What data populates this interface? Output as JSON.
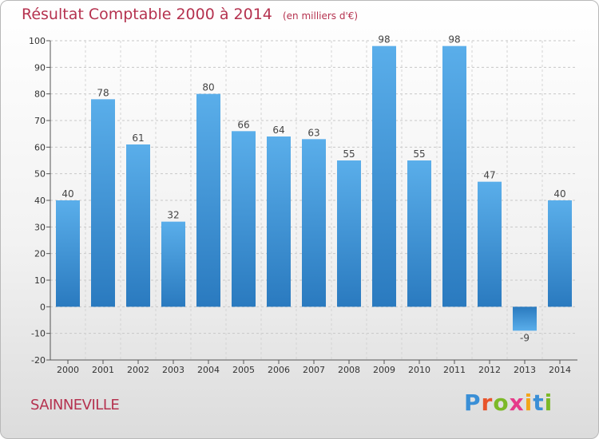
{
  "header": {
    "title": "Résultat Comptable 2000 à 2014",
    "unit": "(en milliers d'€)"
  },
  "footer": {
    "commune": "SAINNEVILLE",
    "logo_letters": [
      "P",
      "r",
      "o",
      "x",
      "i",
      "t",
      "i"
    ],
    "logo_colors": [
      "#3a8fd6",
      "#e8542b",
      "#7cb928",
      "#e63b8a",
      "#f2a51a",
      "#3a8fd6",
      "#7cb928"
    ]
  },
  "colors": {
    "title": "#b5324f",
    "bar_light": "#5aaeea",
    "bar_dark": "#2a7abf"
  },
  "chart_data": {
    "type": "bar",
    "title": "Résultat Comptable 2000 à 2014",
    "xlabel": "",
    "ylabel": "",
    "categories": [
      "2000",
      "2001",
      "2002",
      "2003",
      "2004",
      "2005",
      "2006",
      "2007",
      "2008",
      "2009",
      "2010",
      "2011",
      "2012",
      "2013",
      "2014"
    ],
    "values": [
      40,
      78,
      61,
      32,
      80,
      66,
      64,
      63,
      55,
      98,
      55,
      98,
      47,
      -9,
      40
    ],
    "data_labels": [
      "40",
      "78",
      "61",
      "32",
      "80",
      "66",
      "64",
      "63",
      "55",
      "98",
      "55",
      "98",
      "47",
      "-9",
      "40"
    ],
    "ylim": [
      -20,
      100
    ],
    "yticks": [
      -20,
      -10,
      0,
      10,
      20,
      30,
      40,
      50,
      60,
      70,
      80,
      90,
      100
    ],
    "ytick_labels": [
      "-20",
      "-10",
      "0",
      "10",
      "20",
      "30",
      "40",
      "50",
      "60",
      "70",
      "80",
      "90",
      "100"
    ],
    "grid": "horizontal dashed",
    "legend": "none"
  }
}
